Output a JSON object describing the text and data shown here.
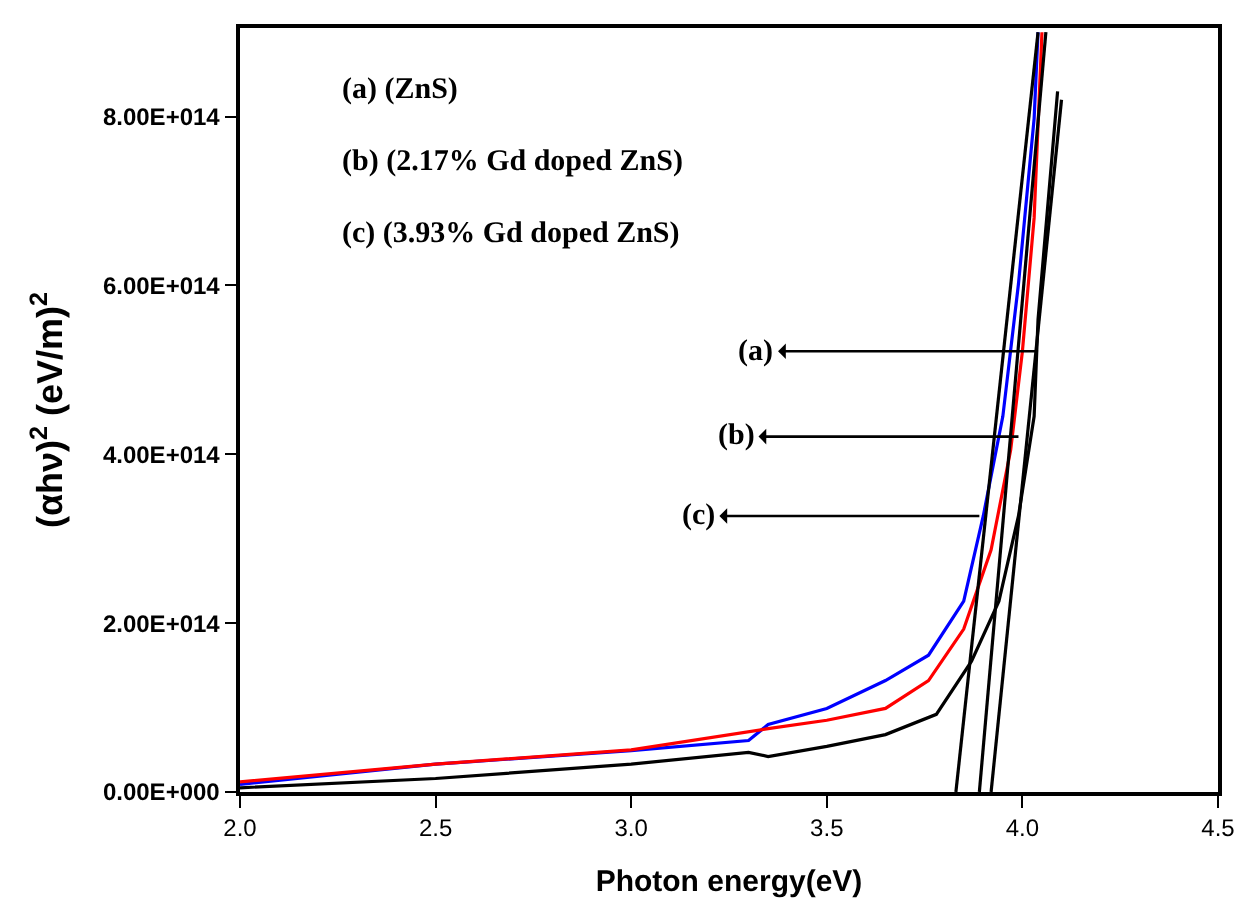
{
  "chart_data": {
    "type": "line",
    "xlabel": "Photon energy(eV)",
    "ylabel": "(αhν)$^{2}$ (eV/m)$^{2}$",
    "xlim": [
      2.0,
      4.5
    ],
    "ylim": [
      0,
      905000000000000.0
    ],
    "xticks": [
      {
        "value": 2.0,
        "label": "2.0"
      },
      {
        "value": 2.5,
        "label": "2.5"
      },
      {
        "value": 3.0,
        "label": "3.0"
      },
      {
        "value": 3.5,
        "label": "3.5"
      },
      {
        "value": 4.0,
        "label": "4.0"
      },
      {
        "value": 4.5,
        "label": "4.5"
      }
    ],
    "yticks": [
      {
        "value": 0,
        "label": "0.00E+000"
      },
      {
        "value": 200000000000000.0,
        "label": "2.00E+014"
      },
      {
        "value": 400000000000000.0,
        "label": "4.00E+014"
      },
      {
        "value": 600000000000000.0,
        "label": "6.00E+014"
      },
      {
        "value": 800000000000000.0,
        "label": "8.00E+014"
      }
    ],
    "marker": "none",
    "line_style": "solid",
    "series": [
      {
        "color": "#0000ff",
        "x": [
          2.0,
          2.5,
          3.0,
          3.3,
          3.35,
          3.5,
          3.65,
          3.76,
          3.85,
          3.9,
          3.95,
          3.99,
          4.03,
          4.04
        ],
        "values": [
          9000000000000.0,
          33000000000000.0,
          49000000000000.0,
          61000000000000.0,
          80000000000000.0,
          99000000000000.0,
          132000000000000.0,
          162000000000000.0,
          226000000000000.0,
          327000000000000.0,
          445000000000000.0,
          602000000000000.0,
          798000000000000.0,
          900000000000000.0
        ]
      },
      {
        "color": "#ff0000",
        "x": [
          2.0,
          2.5,
          3.0,
          3.35,
          3.5,
          3.65,
          3.76,
          3.85,
          3.92,
          3.97,
          4.0,
          4.03,
          4.05
        ],
        "values": [
          12000000000000.0,
          33000000000000.0,
          50000000000000.0,
          75000000000000.0,
          85000000000000.0,
          99000000000000.0,
          132000000000000.0,
          193000000000000.0,
          287000000000000.0,
          405000000000000.0,
          522000000000000.0,
          680000000000000.0,
          900000000000000.0
        ]
      },
      {
        "color": "#000000",
        "x": [
          2.0,
          2.5,
          3.0,
          3.3,
          3.35,
          3.5,
          3.65,
          3.78,
          3.87,
          3.94,
          3.99,
          4.03,
          4.04,
          4.09
        ],
        "values": [
          5000000000000.0,
          16000000000000.0,
          33000000000000.0,
          47000000000000.0,
          42000000000000.0,
          54000000000000.0,
          68000000000000.0,
          92000000000000.0,
          155000000000000.0,
          226000000000000.0,
          327000000000000.0,
          445000000000000.0,
          560000000000000.0,
          830000000000000.0
        ]
      },
      {
        "color": "#000000",
        "x": [
          3.83,
          4.04
        ],
        "values": [
          0,
          900000000000000.0
        ]
      },
      {
        "color": "#000000",
        "x": [
          3.89,
          4.06
        ],
        "values": [
          0,
          900000000000000.0
        ]
      },
      {
        "color": "#000000",
        "x": [
          3.92,
          4.1
        ],
        "values": [
          0,
          820000000000000.0
        ]
      }
    ],
    "annotations": [
      "(a) (ZnS)",
      "(b) (2.17% Gd doped ZnS)",
      "(c) (3.93% Gd doped ZnS)",
      {
        "text": "(a)",
        "x": 4.04,
        "y": 522000000000000.0
      },
      {
        "text": "(b)",
        "x": 3.99,
        "y": 421000000000000.0
      },
      {
        "text": "(c)",
        "x": 3.89,
        "y": 327000000000000.0
      }
    ]
  }
}
